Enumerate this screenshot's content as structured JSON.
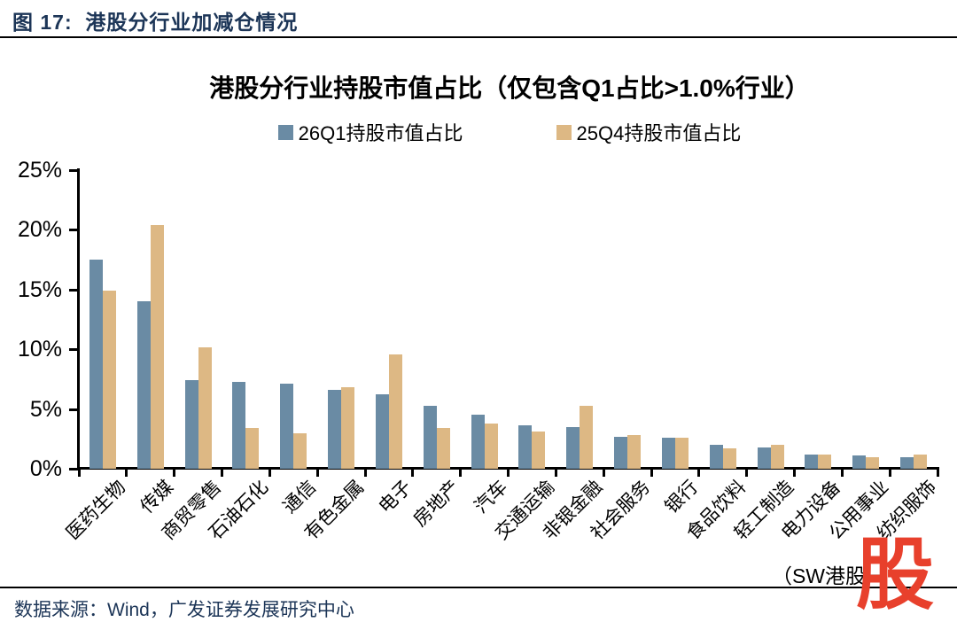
{
  "header": {
    "title": "图 17:  港股分行业加减仓情况"
  },
  "footer": {
    "source": "数据来源：Wind，广发证券发展研究中心"
  },
  "watermark": {
    "text": "股",
    "color": "#E8402C"
  },
  "colors": {
    "header_text": "#1C3557",
    "axis": "#000000",
    "series_blue": "#6A8BA4",
    "series_tan": "#DDB884",
    "watermark_red": "#E8402C"
  },
  "chart_data": {
    "type": "bar",
    "title": "港股分行业持股市值占比（仅包含Q1占比>1.0%行业）",
    "categories": [
      "医药生物",
      "传媒",
      "商贸零售",
      "石油石化",
      "通信",
      "有色金属",
      "电子",
      "房地产",
      "汽车",
      "交通运输",
      "非银金融",
      "社会服务",
      "银行",
      "食品饮料",
      "轻工制造",
      "电力设备",
      "公用事业",
      "纺织服饰"
    ],
    "series": [
      {
        "name": "26Q1持股市值占比",
        "color": "#6A8BA4",
        "values": [
          17.5,
          14.0,
          7.4,
          7.3,
          7.1,
          6.6,
          6.2,
          5.3,
          4.5,
          3.6,
          3.5,
          2.7,
          2.6,
          2.0,
          1.8,
          1.2,
          1.1,
          1.0
        ]
      },
      {
        "name": "25Q4持股市值占比",
        "color": "#DDB884",
        "values": [
          14.9,
          20.4,
          10.2,
          3.4,
          3.0,
          6.8,
          9.6,
          3.4,
          3.8,
          3.1,
          5.3,
          2.8,
          2.6,
          1.7,
          2.0,
          1.2,
          1.0,
          1.2
        ]
      }
    ],
    "ylabel": "",
    "xlabel": "",
    "ylim": [
      0,
      25
    ],
    "ytick_step": 5,
    "ytick_suffix": "%",
    "grid": false,
    "legend_position": "top-center",
    "note": "（SW港股一"
  }
}
